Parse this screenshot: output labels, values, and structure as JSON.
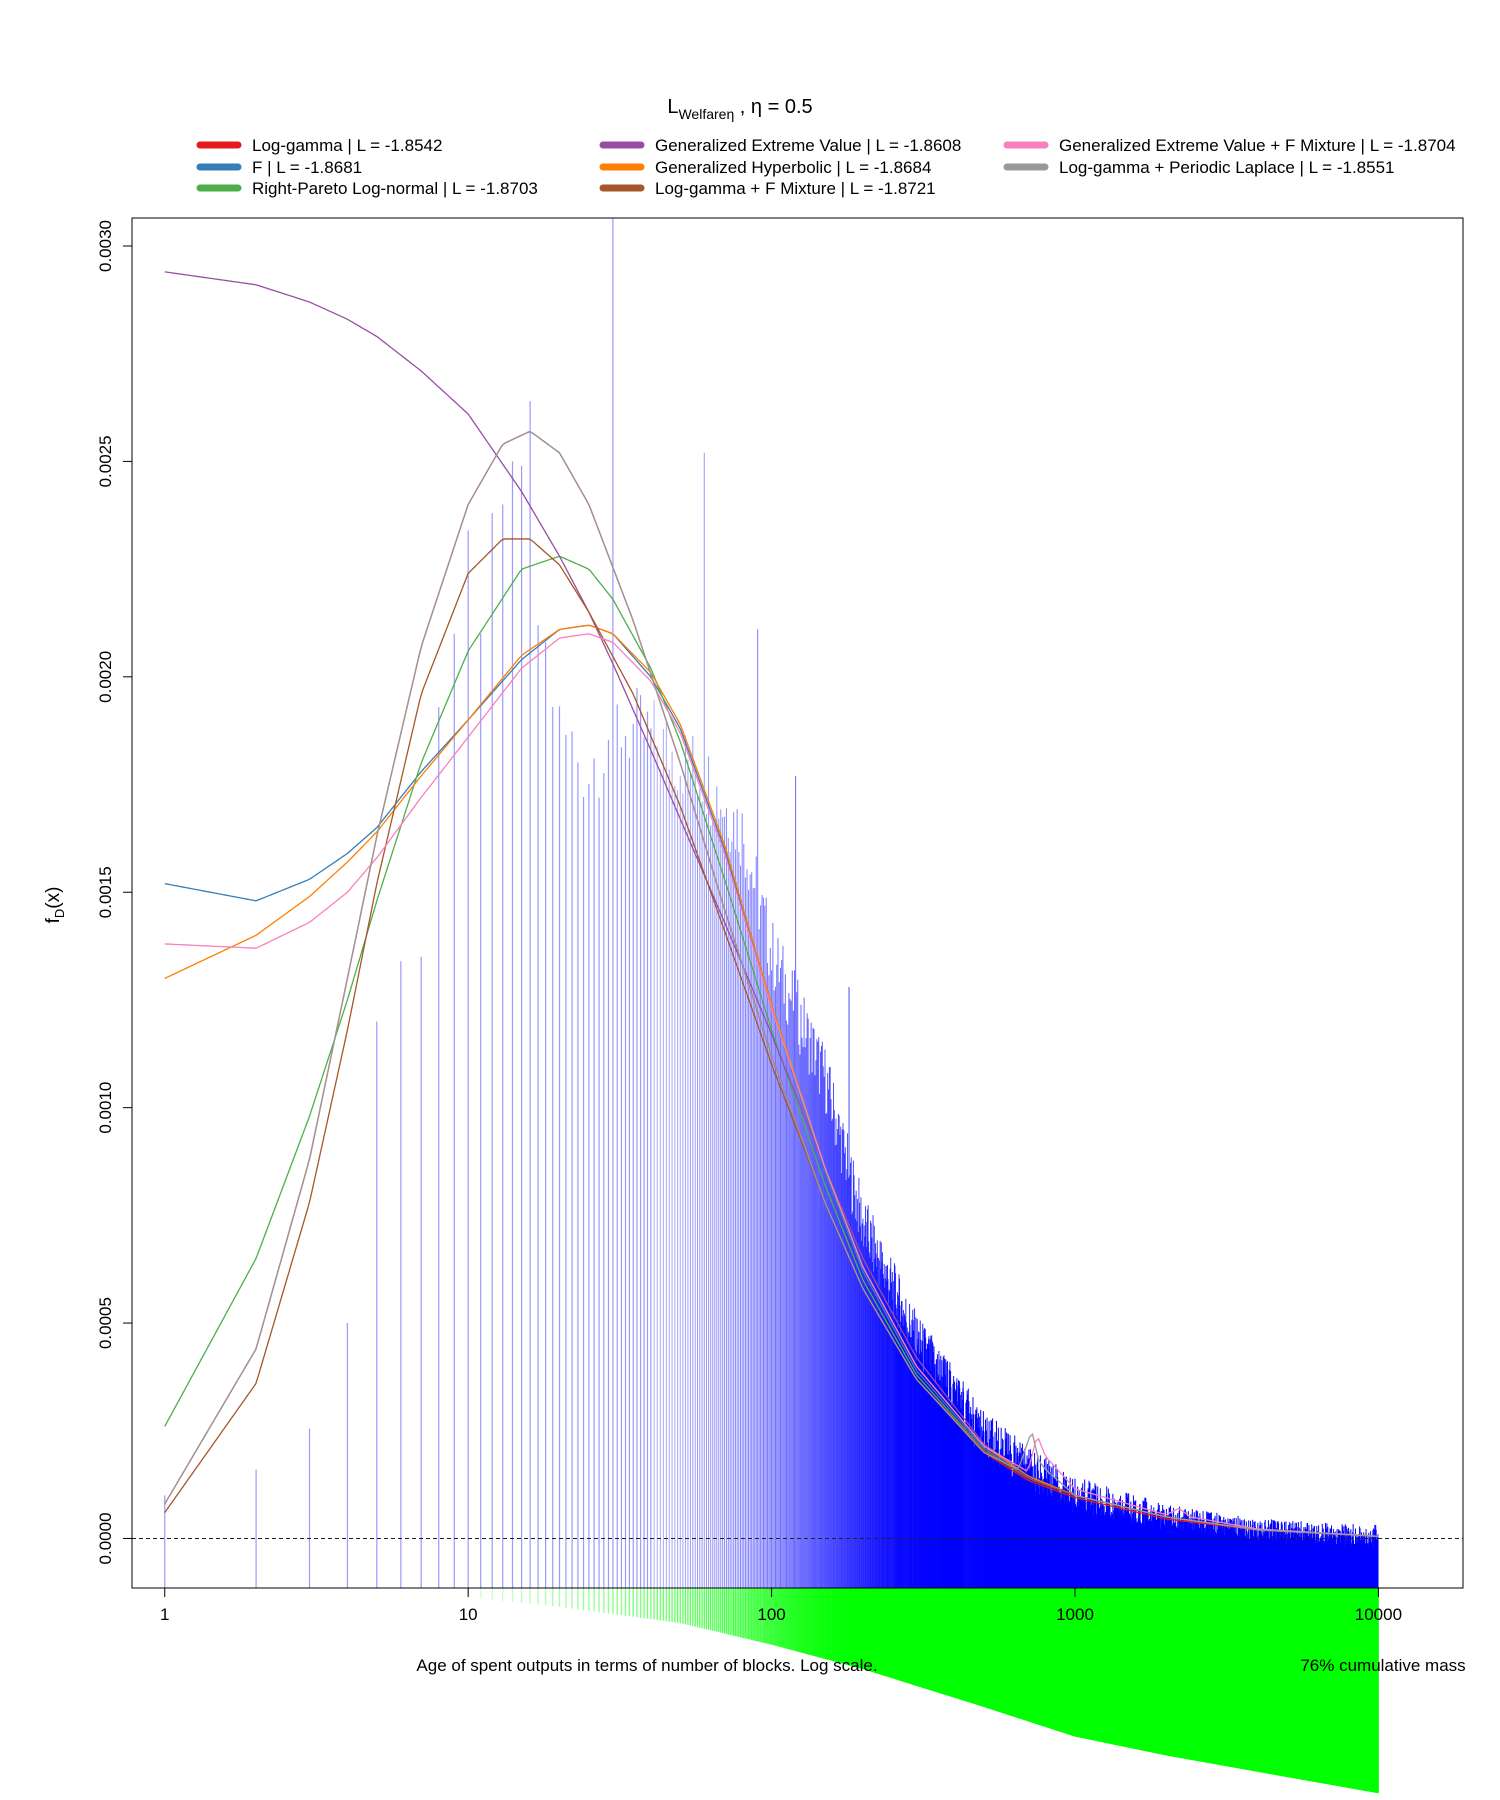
{
  "chart_data": {
    "type": "line",
    "title": {
      "main": "L",
      "subscript": "Welfareη",
      "suffix": " , η = 0.5"
    },
    "xlabel": "Age of spent outputs in terms of number of blocks. Log scale.",
    "ylabel": {
      "main": "f",
      "subscript": "D",
      "suffix": "(x)"
    },
    "cumulative_label": "76% cumulative mass",
    "x_scale": "log",
    "xlim": [
      0.78,
      19000
    ],
    "ylim": [
      -0.000115,
      0.003065
    ],
    "x_ticks": [
      {
        "value": 1,
        "label": "1"
      },
      {
        "value": 10,
        "label": "10"
      },
      {
        "value": 100,
        "label": "100"
      },
      {
        "value": 1000,
        "label": "1000"
      },
      {
        "value": 10000,
        "label": "10000"
      }
    ],
    "y_ticks": [
      {
        "value": 0,
        "label": "0.0000"
      },
      {
        "value": 0.0005,
        "label": "0.0005"
      },
      {
        "value": 0.001,
        "label": "0.0010"
      },
      {
        "value": 0.0015,
        "label": "0.0015"
      },
      {
        "value": 0.002,
        "label": "0.0020"
      },
      {
        "value": 0.0025,
        "label": "0.0025"
      },
      {
        "value": 0.003,
        "label": "0.0030"
      }
    ],
    "zero_line": 0,
    "legend": {
      "placement": "top",
      "columns": 3,
      "entries": [
        {
          "label": "Log-gamma | L = -1.8542",
          "color": "#e41a1c"
        },
        {
          "label": "F | L = -1.8681",
          "color": "#377eb8"
        },
        {
          "label": "Right-Pareto Log-normal | L = -1.8703",
          "color": "#4daf4a"
        },
        {
          "label": "Generalized Extreme Value | L = -1.8608",
          "color": "#984ea3"
        },
        {
          "label": "Generalized Hyperbolic | L = -1.8684",
          "color": "#ff7f00"
        },
        {
          "label": "Log-gamma + F Mixture | L = -1.8721",
          "color": "#a65628"
        },
        {
          "label": "Generalized Extreme Value + F Mixture | L = -1.8704",
          "color": "#f781bf"
        },
        {
          "label": "Log-gamma + Periodic Laplace | L = -1.8551",
          "color": "#999999"
        }
      ]
    },
    "series": [
      {
        "name": "Log-gamma",
        "color": "#e41a1c",
        "x": [
          1,
          2,
          3,
          4,
          5,
          7,
          10,
          13,
          16,
          20,
          25,
          35,
          50,
          70,
          100,
          150,
          200,
          300,
          500,
          700,
          1000,
          2000,
          4000,
          10000
        ],
        "y": [
          8e-05,
          0.00044,
          0.00088,
          0.0013,
          0.00163,
          0.00207,
          0.0024,
          0.00254,
          0.00257,
          0.00252,
          0.0024,
          0.00213,
          0.0018,
          0.00146,
          0.00112,
          0.00078,
          0.00058,
          0.00037,
          0.0002,
          0.000135,
          9.5e-05,
          4.5e-05,
          2e-05,
          5e-06
        ]
      },
      {
        "name": "F",
        "color": "#377eb8",
        "x": [
          1,
          2,
          3,
          4,
          5,
          7,
          10,
          15,
          20,
          25,
          30,
          40,
          50,
          70,
          100,
          150,
          200,
          300,
          500,
          700,
          1000,
          2000,
          4000,
          10000
        ],
        "y": [
          0.00152,
          0.00148,
          0.00153,
          0.00159,
          0.00165,
          0.00178,
          0.0019,
          0.00204,
          0.00211,
          0.00212,
          0.0021,
          0.002,
          0.00188,
          0.0016,
          0.00123,
          0.00085,
          0.00062,
          0.00039,
          0.00021,
          0.00014,
          0.0001,
          5e-05,
          2e-05,
          5e-06
        ]
      },
      {
        "name": "Right-Pareto Log-normal",
        "color": "#4daf4a",
        "x": [
          1,
          2,
          3,
          4,
          5,
          7,
          10,
          15,
          20,
          25,
          30,
          40,
          50,
          70,
          100,
          150,
          200,
          300,
          500,
          700,
          1000,
          2000,
          4000,
          10000
        ],
        "y": [
          0.00026,
          0.00065,
          0.00098,
          0.00125,
          0.00148,
          0.0018,
          0.00206,
          0.00225,
          0.00228,
          0.00225,
          0.00218,
          0.00202,
          0.00185,
          0.00153,
          0.00118,
          0.00082,
          0.0006,
          0.00038,
          0.000205,
          0.00014,
          0.0001,
          5e-05,
          2e-05,
          5e-06
        ]
      },
      {
        "name": "Generalized Extreme Value",
        "color": "#984ea3",
        "x": [
          1,
          2,
          3,
          4,
          5,
          7,
          10,
          15,
          20,
          25,
          30,
          40,
          50,
          70,
          100,
          150,
          200,
          300,
          500,
          700,
          1000,
          2000,
          4000,
          10000
        ],
        "y": [
          0.00294,
          0.00291,
          0.00287,
          0.00283,
          0.00279,
          0.00271,
          0.00261,
          0.00243,
          0.00228,
          0.00215,
          0.00203,
          0.00183,
          0.00167,
          0.00143,
          0.00117,
          0.00086,
          0.00065,
          0.00042,
          0.00022,
          0.000145,
          0.0001,
          5e-05,
          2e-05,
          5e-06
        ]
      },
      {
        "name": "Generalized Hyperbolic",
        "color": "#ff7f00",
        "x": [
          1,
          2,
          3,
          4,
          5,
          7,
          10,
          15,
          20,
          25,
          30,
          40,
          50,
          70,
          100,
          150,
          200,
          300,
          500,
          700,
          1000,
          2000,
          4000,
          10000
        ],
        "y": [
          0.0013,
          0.0014,
          0.00149,
          0.00157,
          0.00164,
          0.00177,
          0.0019,
          0.00205,
          0.00211,
          0.00212,
          0.0021,
          0.00201,
          0.00189,
          0.00161,
          0.00124,
          0.00086,
          0.00063,
          0.0004,
          0.000215,
          0.000145,
          0.0001,
          5e-05,
          2e-05,
          5e-06
        ]
      },
      {
        "name": "Log-gamma + F Mixture",
        "color": "#a65628",
        "x": [
          1,
          2,
          3,
          4,
          5,
          7,
          10,
          13,
          16,
          20,
          25,
          35,
          50,
          70,
          100,
          150,
          200,
          300,
          500,
          700,
          1000,
          2000,
          4000,
          10000
        ],
        "y": [
          6e-05,
          0.00036,
          0.00078,
          0.00118,
          0.00152,
          0.00196,
          0.00224,
          0.00232,
          0.00232,
          0.00226,
          0.00215,
          0.00196,
          0.0017,
          0.00141,
          0.0011,
          0.00078,
          0.00058,
          0.00037,
          0.000205,
          0.00014,
          0.0001,
          5e-05,
          2e-05,
          5e-06
        ]
      },
      {
        "name": "Generalized Extreme Value + F Mixture",
        "color": "#f781bf",
        "x": [
          1,
          2,
          3,
          4,
          5,
          7,
          10,
          15,
          20,
          25,
          30,
          40,
          50,
          70,
          100,
          150,
          200,
          300,
          500,
          700,
          750,
          800,
          1000,
          2000,
          2200,
          2400,
          4000,
          10000
        ],
        "y": [
          0.00138,
          0.00137,
          0.00143,
          0.0015,
          0.00158,
          0.00172,
          0.00186,
          0.00202,
          0.00209,
          0.0021,
          0.00208,
          0.00199,
          0.00187,
          0.00159,
          0.00123,
          0.00086,
          0.00063,
          0.0004,
          0.000215,
          0.000155,
          0.00024,
          0.00019,
          0.000115,
          5.5e-05,
          7e-05,
          5e-05,
          2.2e-05,
          5e-06
        ]
      },
      {
        "name": "Log-gamma + Periodic Laplace",
        "color": "#999999",
        "x": [
          1,
          2,
          3,
          4,
          5,
          7,
          10,
          13,
          16,
          20,
          25,
          35,
          50,
          70,
          100,
          150,
          200,
          300,
          500,
          650,
          720,
          760,
          800,
          1000,
          2000,
          4000,
          10000
        ],
        "y": [
          8e-05,
          0.00044,
          0.00088,
          0.0013,
          0.00163,
          0.00207,
          0.0024,
          0.00254,
          0.00257,
          0.00252,
          0.0024,
          0.00213,
          0.0018,
          0.00146,
          0.00112,
          0.00078,
          0.00058,
          0.00037,
          0.0002,
          0.00016,
          0.00025,
          0.00018,
          0.00016,
          0.0001,
          5e-05,
          2e-05,
          5e-06
        ]
      }
    ],
    "histogram": {
      "color": "#0000ff",
      "baseline": -0.000115,
      "anchor_x": [
        1,
        2,
        3,
        4,
        5,
        6,
        7,
        8,
        9,
        10,
        11,
        12,
        13,
        14,
        15,
        16,
        17,
        18,
        20,
        25,
        30,
        40,
        60,
        80,
        100,
        150,
        200,
        300,
        500,
        700,
        1000,
        2000,
        4000,
        10000
      ],
      "anchor_y": [
        0.0001,
        0.00016,
        0.000255,
        0.0005,
        0.0012,
        0.00134,
        0.00135,
        0.00193,
        0.0021,
        0.00234,
        0.0021,
        0.00238,
        0.0024,
        0.0025,
        0.00249,
        0.00264,
        0.00212,
        0.00208,
        0.00187,
        0.00179,
        0.00189,
        0.00186,
        0.00177,
        0.00164,
        0.00136,
        0.00107,
        0.00073,
        0.00046,
        0.00024,
        0.000165,
        0.0001,
        5e-05,
        2e-05,
        5e-06
      ],
      "spike_x": [
        30,
        60,
        90,
        120,
        180
      ],
      "spike_y": [
        0.00308,
        0.00252,
        0.00211,
        0.00177,
        0.00128
      ]
    },
    "cumulative": {
      "color": "#00ff00",
      "anchor_x": [
        10,
        20,
        50,
        100,
        200,
        500,
        1000,
        2000,
        5000,
        10000
      ],
      "anchor_mass": [
        0.035,
        0.07,
        0.13,
        0.21,
        0.3,
        0.44,
        0.55,
        0.62,
        0.7,
        0.76
      ]
    }
  }
}
